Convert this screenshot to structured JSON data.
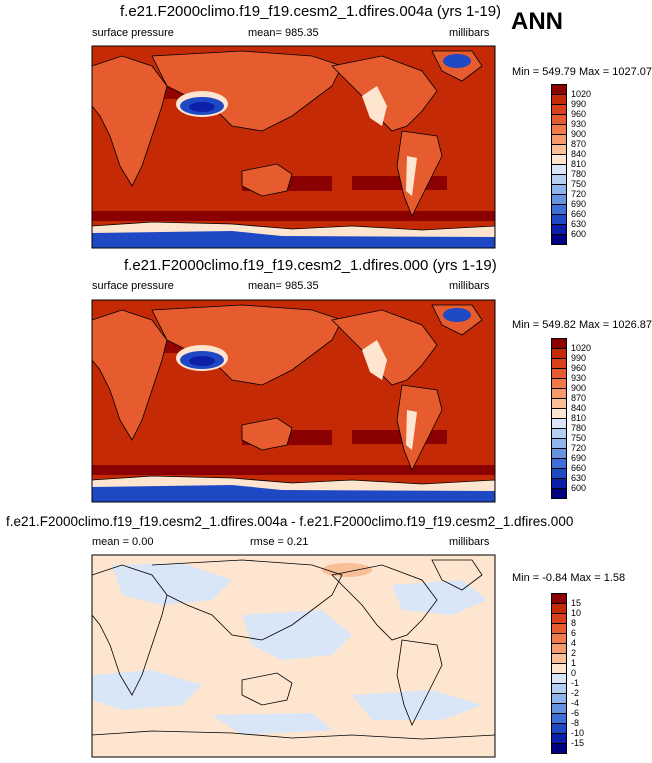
{
  "corner_label": "ANN",
  "panels": [
    {
      "title": "f.e21.F2000climo.f19_f19.cesm2_1.dfires.004a (yrs 1-19)",
      "left": "surface pressure",
      "center": "mean= 985.35",
      "right": "millibars",
      "minmax": "Min = 549.79 Max = 1027.07"
    },
    {
      "title": "f.e21.F2000climo.f19_f19.cesm2_1.dfires.000 (yrs 1-19)",
      "left": "surface pressure",
      "center": "mean= 985.35",
      "right": "millibars",
      "minmax": "Min = 549.82 Max = 1026.87"
    },
    {
      "title": "f.e21.F2000climo.f19_f19.cesm2_1.dfires.004a - f.e21.F2000climo.f19_f19.cesm2_1.dfires.000",
      "left": "mean =   0.00",
      "center": "rmse =   0.21",
      "right": "millibars",
      "minmax": "Min =  -0.84 Max =   1.58"
    }
  ],
  "legend_abs": {
    "labels": [
      "1020",
      "990",
      "960",
      "930",
      "900",
      "870",
      "840",
      "810",
      "780",
      "750",
      "720",
      "690",
      "660",
      "630",
      "600"
    ],
    "colors": [
      "#8b0000",
      "#c52a07",
      "#d8411a",
      "#e65c2e",
      "#f07a4a",
      "#f59a6c",
      "#f9bf96",
      "#fde5cf",
      "#d8e6f7",
      "#b5cff2",
      "#8fb3eb",
      "#6693e0",
      "#3f6fd6",
      "#1f48c4",
      "#0c1fa8",
      "#000080"
    ]
  },
  "legend_diff": {
    "labels": [
      "15",
      "10",
      "8",
      "6",
      "4",
      "2",
      "1",
      "0",
      "-1",
      "-2",
      "-4",
      "-6",
      "-8",
      "-10",
      "-15"
    ],
    "colors": [
      "#8b0000",
      "#c52a07",
      "#d8411a",
      "#e65c2e",
      "#f07a4a",
      "#f59a6c",
      "#f9bf96",
      "#fde5cf",
      "#d8e6f7",
      "#b5cff2",
      "#8fb3eb",
      "#6693e0",
      "#3f6fd6",
      "#1f48c4",
      "#0c1fa8",
      "#000080"
    ]
  },
  "map_colors": {
    "ocean_abs": "#c52a07",
    "land_abs": "#e65c2e",
    "high_abs": "#8b0000",
    "low_abs": "#fde5cf",
    "very_low_abs": "#1f48c4",
    "ocean_diff": "#fde5cf",
    "neg_diff": "#d8e6f7",
    "pos_diff": "#f9bf96"
  }
}
